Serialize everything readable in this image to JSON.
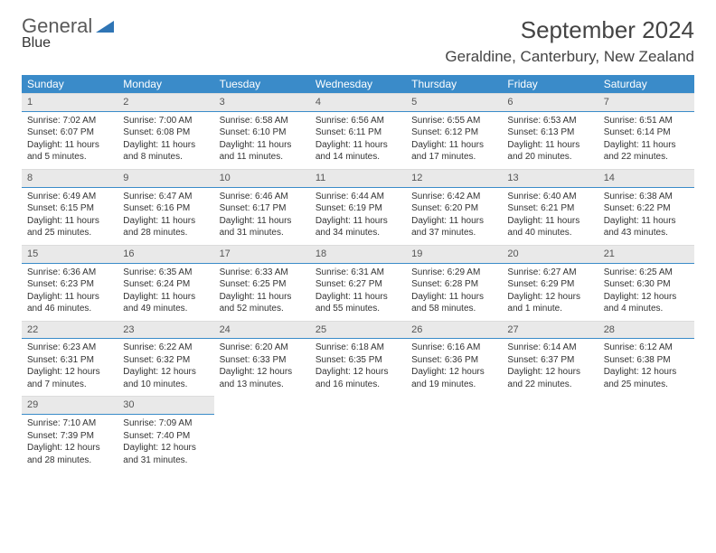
{
  "brand": {
    "part1": "General",
    "part2": "Blue"
  },
  "title": {
    "month": "September 2024",
    "location": "Geraldine, Canterbury, New Zealand"
  },
  "colors": {
    "header_bg": "#3a8bc9",
    "daynum_bg": "#e9e9e9",
    "text": "#333333",
    "rule": "#3a8bc9"
  },
  "typography": {
    "month_fontsize": 26,
    "location_fontsize": 17,
    "th_fontsize": 12,
    "cell_fontsize": 10
  },
  "weekdays": [
    "Sunday",
    "Monday",
    "Tuesday",
    "Wednesday",
    "Thursday",
    "Friday",
    "Saturday"
  ],
  "days": [
    {
      "n": "1",
      "sunrise": "Sunrise: 7:02 AM",
      "sunset": "Sunset: 6:07 PM",
      "day1": "Daylight: 11 hours",
      "day2": "and 5 minutes."
    },
    {
      "n": "2",
      "sunrise": "Sunrise: 7:00 AM",
      "sunset": "Sunset: 6:08 PM",
      "day1": "Daylight: 11 hours",
      "day2": "and 8 minutes."
    },
    {
      "n": "3",
      "sunrise": "Sunrise: 6:58 AM",
      "sunset": "Sunset: 6:10 PM",
      "day1": "Daylight: 11 hours",
      "day2": "and 11 minutes."
    },
    {
      "n": "4",
      "sunrise": "Sunrise: 6:56 AM",
      "sunset": "Sunset: 6:11 PM",
      "day1": "Daylight: 11 hours",
      "day2": "and 14 minutes."
    },
    {
      "n": "5",
      "sunrise": "Sunrise: 6:55 AM",
      "sunset": "Sunset: 6:12 PM",
      "day1": "Daylight: 11 hours",
      "day2": "and 17 minutes."
    },
    {
      "n": "6",
      "sunrise": "Sunrise: 6:53 AM",
      "sunset": "Sunset: 6:13 PM",
      "day1": "Daylight: 11 hours",
      "day2": "and 20 minutes."
    },
    {
      "n": "7",
      "sunrise": "Sunrise: 6:51 AM",
      "sunset": "Sunset: 6:14 PM",
      "day1": "Daylight: 11 hours",
      "day2": "and 22 minutes."
    },
    {
      "n": "8",
      "sunrise": "Sunrise: 6:49 AM",
      "sunset": "Sunset: 6:15 PM",
      "day1": "Daylight: 11 hours",
      "day2": "and 25 minutes."
    },
    {
      "n": "9",
      "sunrise": "Sunrise: 6:47 AM",
      "sunset": "Sunset: 6:16 PM",
      "day1": "Daylight: 11 hours",
      "day2": "and 28 minutes."
    },
    {
      "n": "10",
      "sunrise": "Sunrise: 6:46 AM",
      "sunset": "Sunset: 6:17 PM",
      "day1": "Daylight: 11 hours",
      "day2": "and 31 minutes."
    },
    {
      "n": "11",
      "sunrise": "Sunrise: 6:44 AM",
      "sunset": "Sunset: 6:19 PM",
      "day1": "Daylight: 11 hours",
      "day2": "and 34 minutes."
    },
    {
      "n": "12",
      "sunrise": "Sunrise: 6:42 AM",
      "sunset": "Sunset: 6:20 PM",
      "day1": "Daylight: 11 hours",
      "day2": "and 37 minutes."
    },
    {
      "n": "13",
      "sunrise": "Sunrise: 6:40 AM",
      "sunset": "Sunset: 6:21 PM",
      "day1": "Daylight: 11 hours",
      "day2": "and 40 minutes."
    },
    {
      "n": "14",
      "sunrise": "Sunrise: 6:38 AM",
      "sunset": "Sunset: 6:22 PM",
      "day1": "Daylight: 11 hours",
      "day2": "and 43 minutes."
    },
    {
      "n": "15",
      "sunrise": "Sunrise: 6:36 AM",
      "sunset": "Sunset: 6:23 PM",
      "day1": "Daylight: 11 hours",
      "day2": "and 46 minutes."
    },
    {
      "n": "16",
      "sunrise": "Sunrise: 6:35 AM",
      "sunset": "Sunset: 6:24 PM",
      "day1": "Daylight: 11 hours",
      "day2": "and 49 minutes."
    },
    {
      "n": "17",
      "sunrise": "Sunrise: 6:33 AM",
      "sunset": "Sunset: 6:25 PM",
      "day1": "Daylight: 11 hours",
      "day2": "and 52 minutes."
    },
    {
      "n": "18",
      "sunrise": "Sunrise: 6:31 AM",
      "sunset": "Sunset: 6:27 PM",
      "day1": "Daylight: 11 hours",
      "day2": "and 55 minutes."
    },
    {
      "n": "19",
      "sunrise": "Sunrise: 6:29 AM",
      "sunset": "Sunset: 6:28 PM",
      "day1": "Daylight: 11 hours",
      "day2": "and 58 minutes."
    },
    {
      "n": "20",
      "sunrise": "Sunrise: 6:27 AM",
      "sunset": "Sunset: 6:29 PM",
      "day1": "Daylight: 12 hours",
      "day2": "and 1 minute."
    },
    {
      "n": "21",
      "sunrise": "Sunrise: 6:25 AM",
      "sunset": "Sunset: 6:30 PM",
      "day1": "Daylight: 12 hours",
      "day2": "and 4 minutes."
    },
    {
      "n": "22",
      "sunrise": "Sunrise: 6:23 AM",
      "sunset": "Sunset: 6:31 PM",
      "day1": "Daylight: 12 hours",
      "day2": "and 7 minutes."
    },
    {
      "n": "23",
      "sunrise": "Sunrise: 6:22 AM",
      "sunset": "Sunset: 6:32 PM",
      "day1": "Daylight: 12 hours",
      "day2": "and 10 minutes."
    },
    {
      "n": "24",
      "sunrise": "Sunrise: 6:20 AM",
      "sunset": "Sunset: 6:33 PM",
      "day1": "Daylight: 12 hours",
      "day2": "and 13 minutes."
    },
    {
      "n": "25",
      "sunrise": "Sunrise: 6:18 AM",
      "sunset": "Sunset: 6:35 PM",
      "day1": "Daylight: 12 hours",
      "day2": "and 16 minutes."
    },
    {
      "n": "26",
      "sunrise": "Sunrise: 6:16 AM",
      "sunset": "Sunset: 6:36 PM",
      "day1": "Daylight: 12 hours",
      "day2": "and 19 minutes."
    },
    {
      "n": "27",
      "sunrise": "Sunrise: 6:14 AM",
      "sunset": "Sunset: 6:37 PM",
      "day1": "Daylight: 12 hours",
      "day2": "and 22 minutes."
    },
    {
      "n": "28",
      "sunrise": "Sunrise: 6:12 AM",
      "sunset": "Sunset: 6:38 PM",
      "day1": "Daylight: 12 hours",
      "day2": "and 25 minutes."
    },
    {
      "n": "29",
      "sunrise": "Sunrise: 7:10 AM",
      "sunset": "Sunset: 7:39 PM",
      "day1": "Daylight: 12 hours",
      "day2": "and 28 minutes."
    },
    {
      "n": "30",
      "sunrise": "Sunrise: 7:09 AM",
      "sunset": "Sunset: 7:40 PM",
      "day1": "Daylight: 12 hours",
      "day2": "and 31 minutes."
    }
  ]
}
